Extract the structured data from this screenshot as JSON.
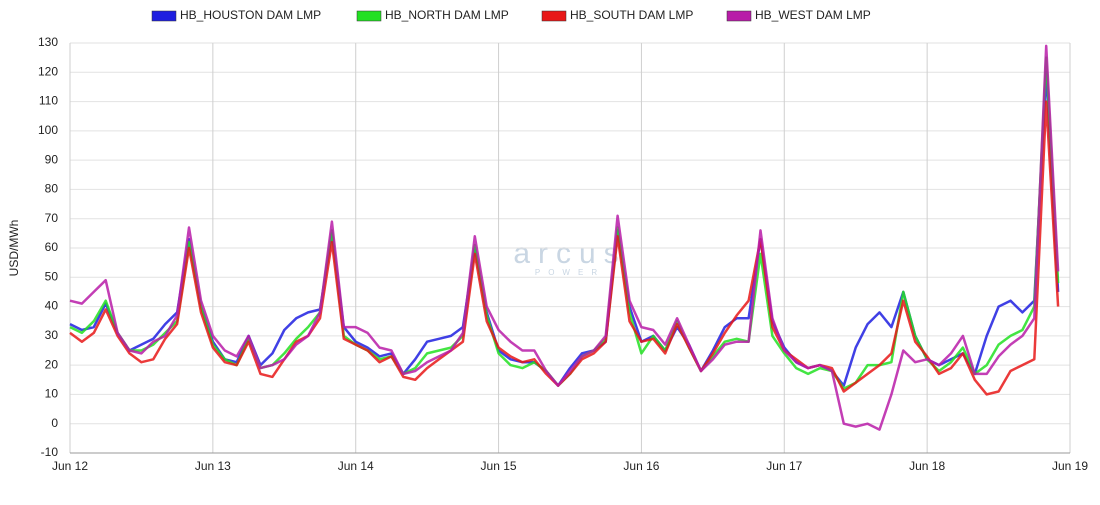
{
  "chart_data": {
    "type": "line",
    "ylabel": "USD/MWh",
    "watermark": "arcus",
    "watermark_sub": "POWER",
    "x": [
      0,
      2,
      4,
      6,
      8,
      10,
      12,
      14,
      16,
      18,
      20,
      22,
      24,
      26,
      28,
      30,
      32,
      34,
      36,
      38,
      40,
      42,
      44,
      46,
      48,
      50,
      52,
      54,
      56,
      58,
      60,
      62,
      64,
      66,
      68,
      70,
      72,
      74,
      76,
      78,
      80,
      82,
      84,
      86,
      88,
      90,
      92,
      94,
      96,
      98,
      100,
      102,
      104,
      106,
      108,
      110,
      112,
      114,
      116,
      118,
      120,
      122,
      124,
      126,
      128,
      130,
      132,
      134,
      136,
      138,
      140,
      142,
      144,
      146,
      148,
      150,
      152,
      154,
      156,
      158,
      160,
      162,
      164,
      166
    ],
    "xlim": [
      0,
      168
    ],
    "xticks": [
      {
        "value": 0,
        "label": "Jun 12"
      },
      {
        "value": 24,
        "label": "Jun 13"
      },
      {
        "value": 48,
        "label": "Jun 14"
      },
      {
        "value": 72,
        "label": "Jun 15"
      },
      {
        "value": 96,
        "label": "Jun 16"
      },
      {
        "value": 120,
        "label": "Jun 17"
      },
      {
        "value": 144,
        "label": "Jun 18"
      },
      {
        "value": 168,
        "label": "Jun 19"
      }
    ],
    "ylim": [
      -10,
      130
    ],
    "yticks": [
      -10,
      0,
      10,
      20,
      30,
      40,
      50,
      60,
      70,
      80,
      90,
      100,
      110,
      120,
      130
    ],
    "grid": true,
    "series": [
      {
        "name": "HB_HOUSTON DAM LMP",
        "color": "#1f1fe0",
        "values": [
          34,
          32,
          33,
          41,
          31,
          25,
          27,
          29,
          34,
          38,
          63,
          40,
          28,
          22,
          21,
          30,
          20,
          24,
          32,
          36,
          38,
          39,
          65,
          33,
          28,
          26,
          23,
          24,
          17,
          22,
          28,
          29,
          30,
          33,
          60,
          38,
          25,
          22,
          21,
          21,
          18,
          13,
          19,
          24,
          25,
          28,
          66,
          40,
          28,
          30,
          25,
          33,
          27,
          18,
          25,
          33,
          36,
          36,
          63,
          35,
          26,
          21,
          19,
          20,
          18,
          13,
          26,
          34,
          38,
          33,
          45,
          30,
          22,
          20,
          22,
          24,
          17,
          30,
          40,
          42,
          38,
          42,
          120,
          45
        ]
      },
      {
        "name": "HB_NORTH DAM LMP",
        "color": "#22e022",
        "values": [
          33,
          31,
          35,
          42,
          31,
          25,
          25,
          27,
          31,
          35,
          62,
          40,
          27,
          22,
          20,
          29,
          19,
          20,
          24,
          29,
          33,
          38,
          66,
          30,
          27,
          25,
          22,
          23,
          17,
          19,
          24,
          25,
          26,
          30,
          61,
          37,
          24,
          20,
          19,
          21,
          18,
          13,
          17,
          23,
          25,
          29,
          67,
          38,
          24,
          30,
          25,
          35,
          26,
          18,
          23,
          28,
          29,
          28,
          58,
          30,
          24,
          19,
          17,
          19,
          18,
          12,
          14,
          20,
          20,
          21,
          45,
          30,
          22,
          18,
          21,
          26,
          17,
          20,
          27,
          30,
          32,
          40,
          125,
          48
        ]
      },
      {
        "name": "HB_SOUTH DAM LMP",
        "color": "#e81818",
        "values": [
          31,
          28,
          31,
          39,
          30,
          24,
          21,
          22,
          29,
          34,
          60,
          38,
          26,
          21,
          20,
          28,
          17,
          16,
          22,
          28,
          30,
          36,
          62,
          29,
          27,
          25,
          21,
          23,
          16,
          15,
          19,
          22,
          25,
          28,
          58,
          35,
          26,
          23,
          21,
          22,
          17,
          13,
          17,
          22,
          24,
          28,
          64,
          35,
          28,
          29,
          24,
          34,
          26,
          18,
          24,
          31,
          37,
          42,
          63,
          33,
          25,
          22,
          19,
          20,
          19,
          11,
          14,
          17,
          20,
          24,
          42,
          28,
          23,
          17,
          19,
          24,
          15,
          10,
          11,
          18,
          20,
          22,
          110,
          40
        ]
      },
      {
        "name": "HB_WEST DAM LMP",
        "color": "#b81ca8",
        "values": [
          42,
          41,
          45,
          49,
          31,
          25,
          24,
          28,
          30,
          37,
          67,
          42,
          30,
          25,
          23,
          30,
          19,
          20,
          22,
          27,
          30,
          38,
          69,
          33,
          33,
          31,
          26,
          25,
          17,
          18,
          21,
          23,
          25,
          31,
          64,
          40,
          32,
          28,
          25,
          25,
          18,
          13,
          18,
          23,
          25,
          30,
          71,
          42,
          33,
          32,
          27,
          36,
          27,
          18,
          22,
          27,
          28,
          28,
          66,
          36,
          25,
          21,
          19,
          20,
          18,
          0,
          -1,
          0,
          -2,
          10,
          25,
          21,
          22,
          20,
          24,
          30,
          17,
          17,
          23,
          27,
          30,
          36,
          129,
          52
        ]
      }
    ]
  }
}
